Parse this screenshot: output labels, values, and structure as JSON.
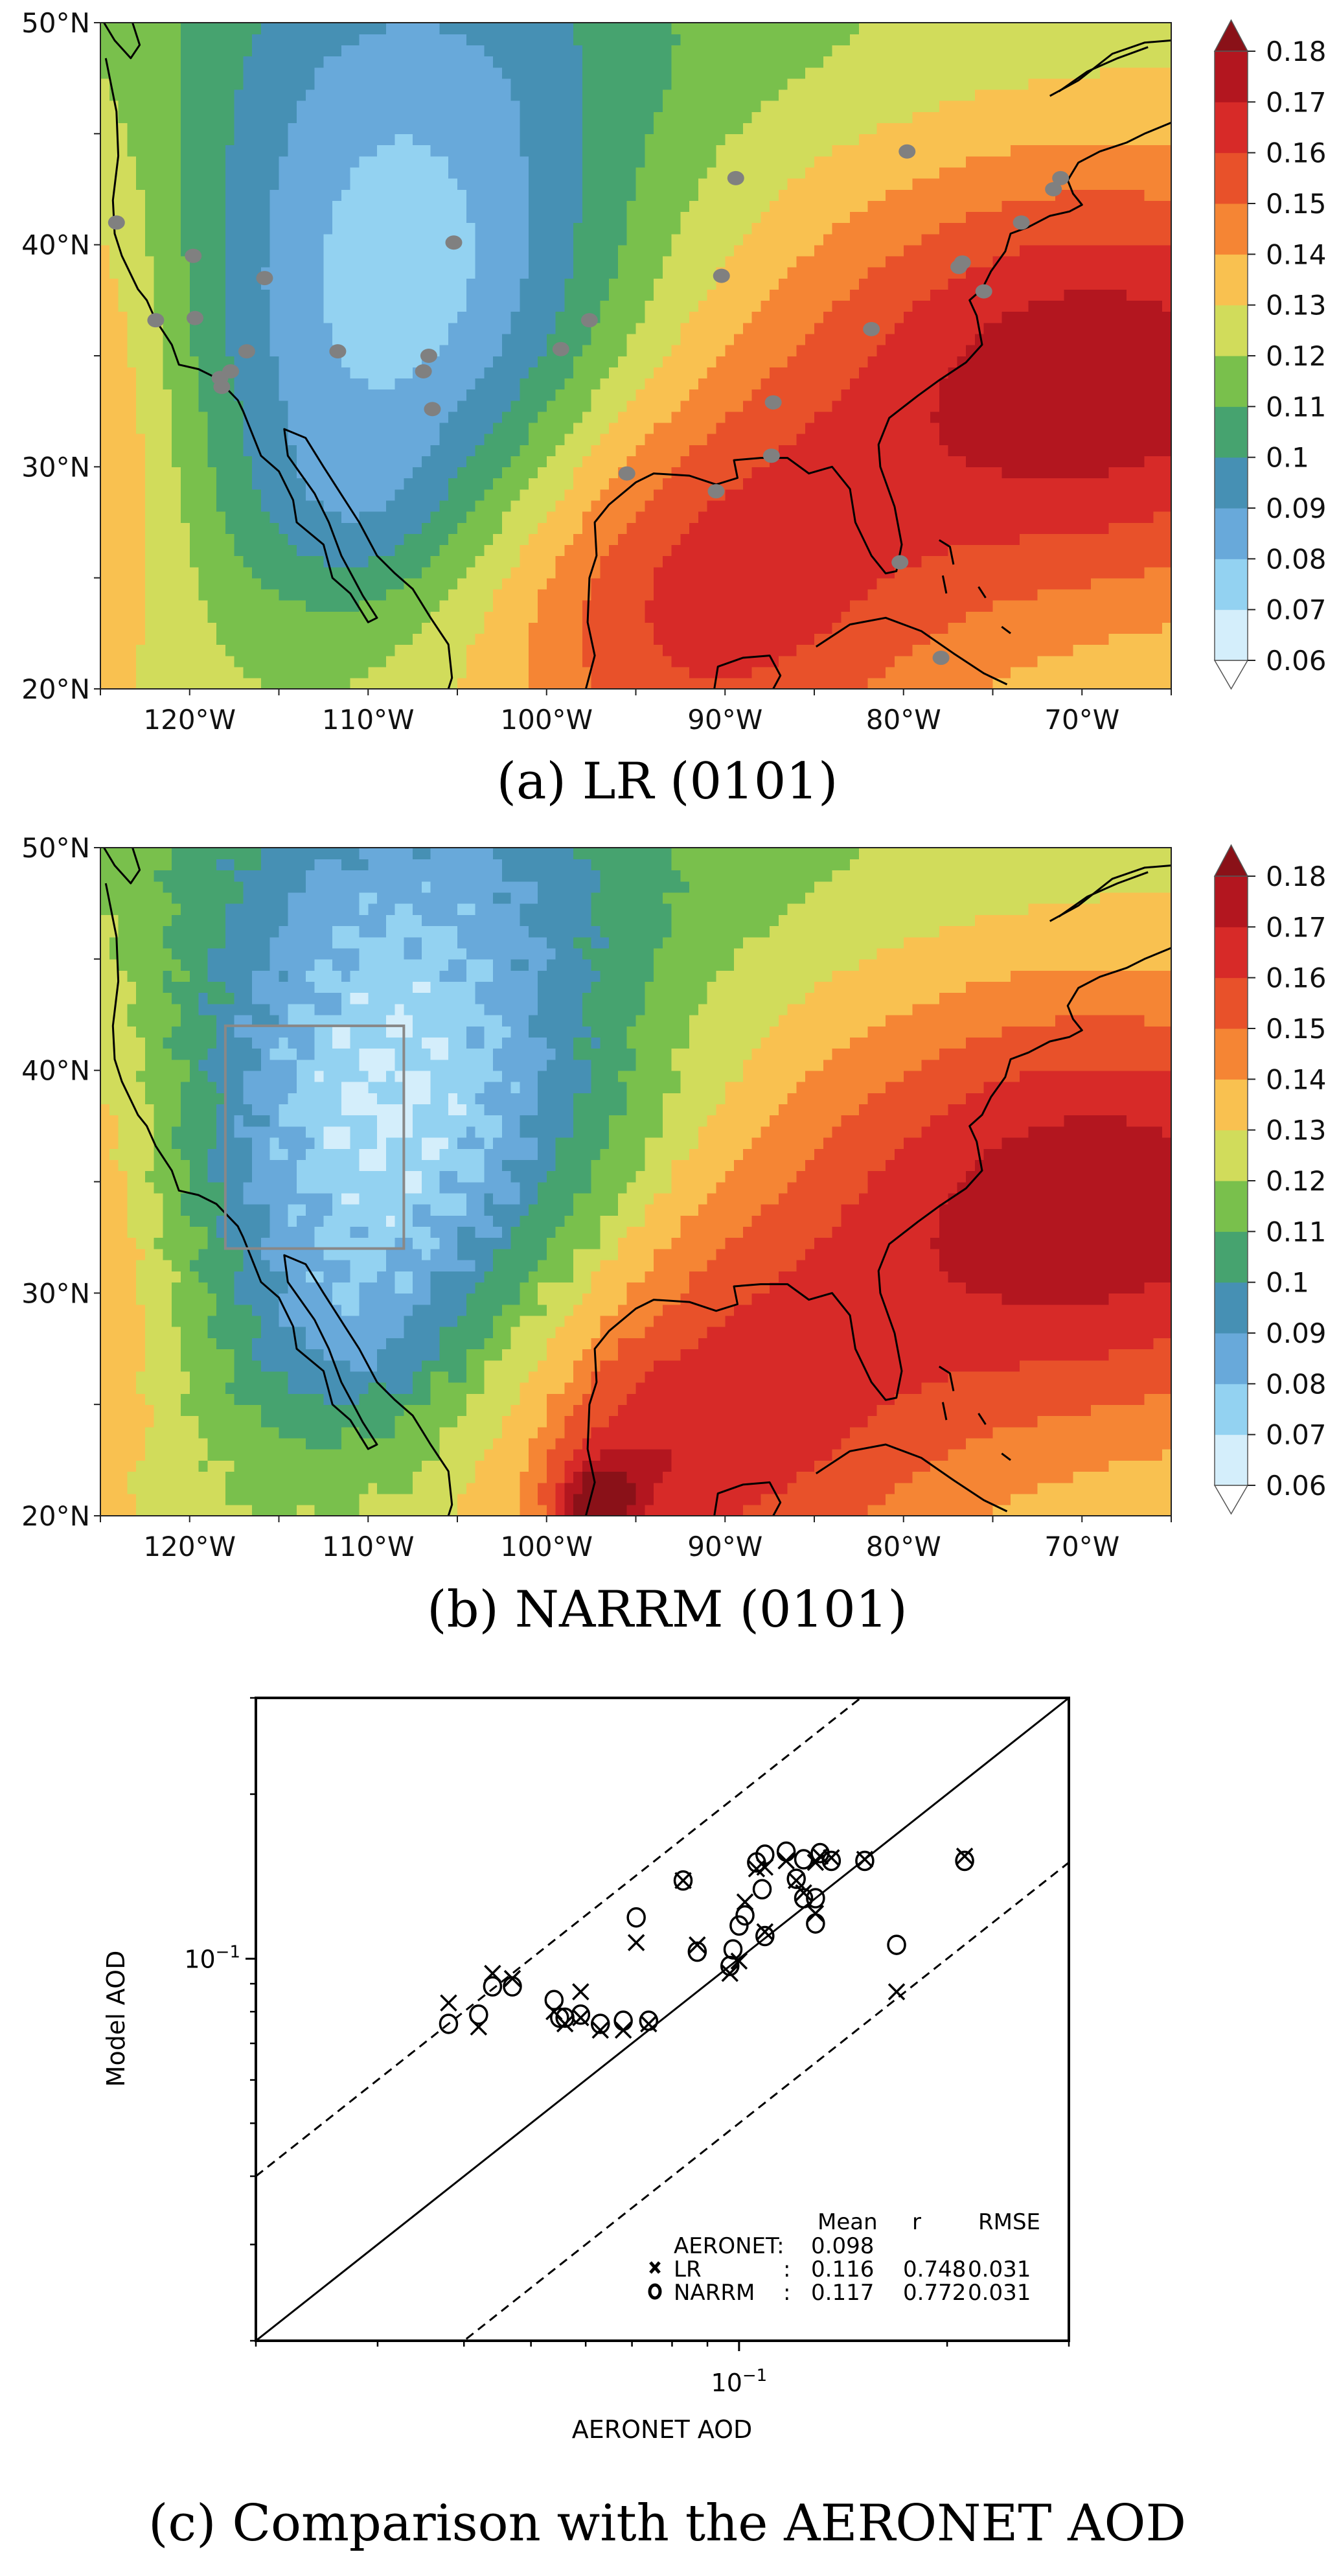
{
  "map_axes": {
    "lon_range": [
      -125,
      -65
    ],
    "lat_range": [
      20,
      50
    ],
    "lon_ticks": [
      {
        "value": -120,
        "label": "120°W"
      },
      {
        "value": -110,
        "label": "110°W"
      },
      {
        "value": -100,
        "label": "100°W"
      },
      {
        "value": -90,
        "label": "90°W"
      },
      {
        "value": -80,
        "label": "80°W"
      },
      {
        "value": -70,
        "label": "70°W"
      }
    ],
    "lat_ticks": [
      {
        "value": 20,
        "label": "20°N"
      },
      {
        "value": 30,
        "label": "30°N"
      },
      {
        "value": 40,
        "label": "40°N"
      },
      {
        "value": 50,
        "label": "50°N"
      }
    ]
  },
  "colorbar": {
    "levels": [
      0.06,
      0.07,
      0.08,
      0.09,
      0.1,
      0.11,
      0.12,
      0.13,
      0.14,
      0.15,
      0.16,
      0.17,
      0.18
    ],
    "labels": [
      "0.06",
      "0.07",
      "0.08",
      "0.09",
      "0.1",
      "0.11",
      "0.12",
      "0.13",
      "0.14",
      "0.15",
      "0.16",
      "0.17",
      "0.18"
    ],
    "colors": [
      "#d4eefb",
      "#93d2f1",
      "#68a9da",
      "#4690b4",
      "#46a36f",
      "#79c04c",
      "#d1dc5b",
      "#f9c150",
      "#f58534",
      "#e8512a",
      "#d72a28",
      "#b3161f"
    ],
    "under_color": "#ffffff",
    "over_color": "#8a1118"
  },
  "panels": [
    {
      "caption": "(a) LR (0101)",
      "station_color": "#808080",
      "stations": [
        [
          -124.1,
          41.0
        ],
        [
          -119.8,
          39.5
        ],
        [
          -115.8,
          38.5
        ],
        [
          -121.9,
          36.6
        ],
        [
          -119.7,
          36.7
        ],
        [
          -116.8,
          35.2
        ],
        [
          -111.7,
          35.2
        ],
        [
          -106.6,
          35.0
        ],
        [
          -106.9,
          34.3
        ],
        [
          -106.4,
          32.6
        ],
        [
          -105.2,
          40.1
        ],
        [
          -97.6,
          36.6
        ],
        [
          -99.2,
          35.3
        ],
        [
          -118.3,
          34.0
        ],
        [
          -117.7,
          34.3
        ],
        [
          -118.2,
          33.6
        ],
        [
          -95.5,
          29.7
        ],
        [
          -89.4,
          43.0
        ],
        [
          -79.8,
          44.2
        ],
        [
          -90.2,
          38.6
        ],
        [
          -81.8,
          36.2
        ],
        [
          -87.3,
          32.9
        ],
        [
          -87.4,
          30.5
        ],
        [
          -90.5,
          28.9
        ],
        [
          -80.2,
          25.7
        ],
        [
          -77.9,
          21.4
        ],
        [
          -76.7,
          39.2
        ],
        [
          -76.9,
          39.0
        ],
        [
          -75.5,
          37.9
        ],
        [
          -73.4,
          41.0
        ],
        [
          -71.2,
          43.0
        ],
        [
          -71.6,
          42.5
        ]
      ]
    },
    {
      "caption": "(b) NARRM (0101)",
      "region_box": {
        "lon": [
          -118,
          -108
        ],
        "lat": [
          32,
          42
        ],
        "color": "#888888"
      }
    }
  ],
  "chart_data": {
    "type": "scatter",
    "caption": "(c) Comparison with the AERONET AOD",
    "xlabel": "AERONET AOD",
    "ylabel": "Model AOD",
    "xscale": "log",
    "yscale": "log",
    "xlim": [
      0.02,
      0.3
    ],
    "ylim": [
      0.02,
      0.3
    ],
    "tick_label": {
      "base": "10",
      "exponent": "−1",
      "value": 0.1
    },
    "reference_lines": [
      {
        "style": "solid",
        "ratio": 1
      },
      {
        "style": "dashed",
        "ratio": 2
      },
      {
        "style": "dashed",
        "ratio": 0.5
      }
    ],
    "series": [
      {
        "name": "LR",
        "marker": "x",
        "points": [
          [
            0.038,
            0.083
          ],
          [
            0.042,
            0.075
          ],
          [
            0.044,
            0.094
          ],
          [
            0.047,
            0.092
          ],
          [
            0.054,
            0.08
          ],
          [
            0.056,
            0.076
          ],
          [
            0.059,
            0.087
          ],
          [
            0.059,
            0.078
          ],
          [
            0.063,
            0.074
          ],
          [
            0.068,
            0.074
          ],
          [
            0.071,
            0.107
          ],
          [
            0.074,
            0.076
          ],
          [
            0.083,
            0.139
          ],
          [
            0.087,
            0.106
          ],
          [
            0.097,
            0.094
          ],
          [
            0.1,
            0.099
          ],
          [
            0.102,
            0.127
          ],
          [
            0.106,
            0.146
          ],
          [
            0.109,
            0.147
          ],
          [
            0.109,
            0.112
          ],
          [
            0.117,
            0.151
          ],
          [
            0.121,
            0.139
          ],
          [
            0.124,
            0.132
          ],
          [
            0.129,
            0.15
          ],
          [
            0.129,
            0.121
          ],
          [
            0.131,
            0.154
          ],
          [
            0.136,
            0.153
          ],
          [
            0.152,
            0.152
          ],
          [
            0.169,
            0.087
          ],
          [
            0.212,
            0.154
          ]
        ]
      },
      {
        "name": "NARRM",
        "marker": "o",
        "points": [
          [
            0.038,
            0.076
          ],
          [
            0.042,
            0.079
          ],
          [
            0.044,
            0.089
          ],
          [
            0.047,
            0.089
          ],
          [
            0.054,
            0.084
          ],
          [
            0.055,
            0.078
          ],
          [
            0.056,
            0.078
          ],
          [
            0.059,
            0.079
          ],
          [
            0.063,
            0.076
          ],
          [
            0.068,
            0.077
          ],
          [
            0.071,
            0.119
          ],
          [
            0.074,
            0.077
          ],
          [
            0.083,
            0.139
          ],
          [
            0.087,
            0.103
          ],
          [
            0.097,
            0.097
          ],
          [
            0.098,
            0.104
          ],
          [
            0.1,
            0.115
          ],
          [
            0.102,
            0.12
          ],
          [
            0.106,
            0.15
          ],
          [
            0.108,
            0.134
          ],
          [
            0.109,
            0.11
          ],
          [
            0.109,
            0.155
          ],
          [
            0.117,
            0.157
          ],
          [
            0.121,
            0.14
          ],
          [
            0.124,
            0.152
          ],
          [
            0.124,
            0.129
          ],
          [
            0.129,
            0.129
          ],
          [
            0.129,
            0.116
          ],
          [
            0.131,
            0.156
          ],
          [
            0.136,
            0.151
          ],
          [
            0.152,
            0.151
          ],
          [
            0.169,
            0.106
          ],
          [
            0.212,
            0.151
          ]
        ]
      }
    ],
    "stats_table": {
      "header": [
        "Mean",
        "r",
        "RMSE"
      ],
      "rows": [
        {
          "label": "AERONET:",
          "sep": "",
          "mean": "0.098",
          "r": "",
          "rmse": ""
        },
        {
          "label": "LR",
          "sep": ":",
          "mean": "0.116",
          "r": "0.748",
          "rmse": "0.031",
          "marker": "x"
        },
        {
          "label": "NARRM",
          "sep": ":",
          "mean": "0.117",
          "r": "0.772",
          "rmse": "0.031",
          "marker": "o"
        }
      ]
    }
  }
}
